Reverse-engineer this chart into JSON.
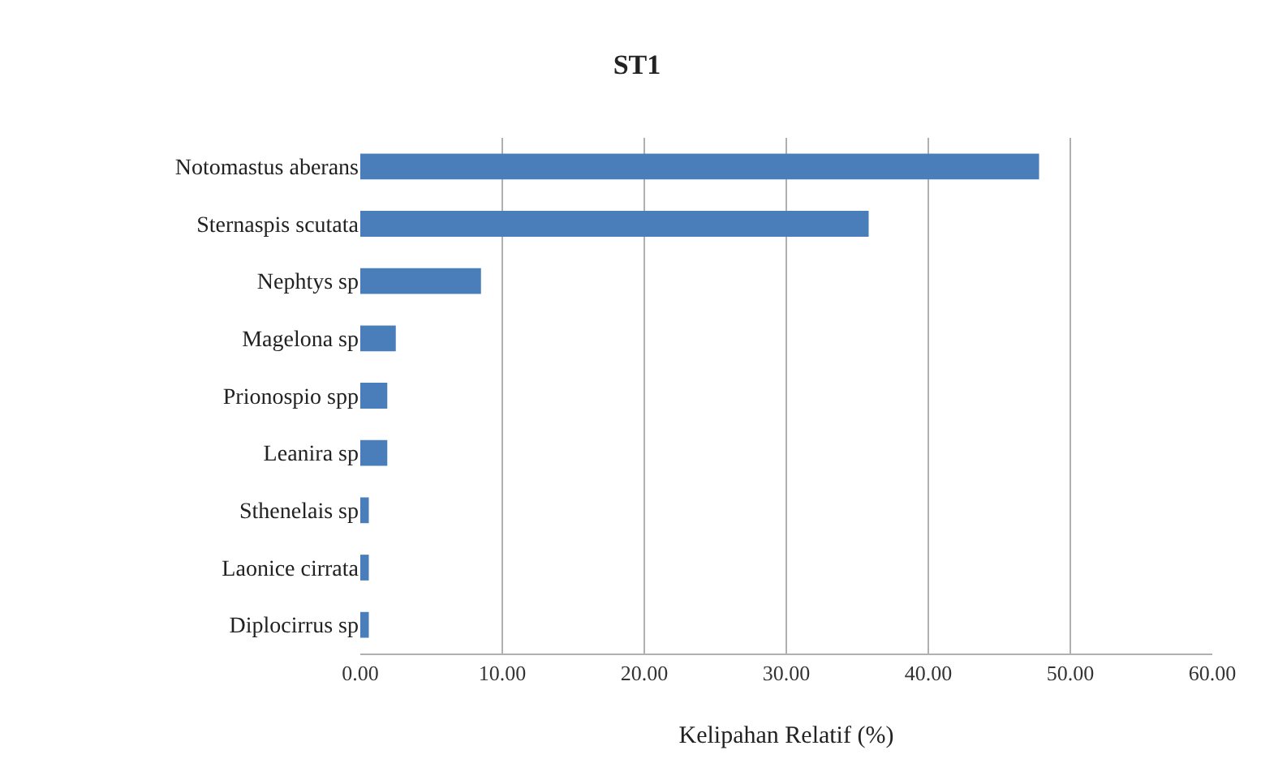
{
  "chart_data": {
    "type": "bar",
    "orientation": "horizontal",
    "title": "ST1",
    "xlabel": "Kelipahan Relatif (%)",
    "categories": [
      "Notomastus aberans",
      "Sternaspis scutata",
      "Nephtys sp",
      "Magelona sp",
      "Prionospio spp",
      "Leanira sp",
      "Sthenelais sp",
      "Laonice cirrata",
      "Diplocirrus sp"
    ],
    "values": [
      47.8,
      35.8,
      8.5,
      2.5,
      1.9,
      1.9,
      0.6,
      0.6,
      0.6
    ],
    "color": "#4a7ebb",
    "xlim": [
      0,
      60
    ],
    "xticks": [
      {
        "value": 0,
        "label": "0.00"
      },
      {
        "value": 10,
        "label": "10.00"
      },
      {
        "value": 20,
        "label": "20.00"
      },
      {
        "value": 30,
        "label": "30.00"
      },
      {
        "value": 40,
        "label": "40.00"
      },
      {
        "value": 50,
        "label": "50.00"
      },
      {
        "value": 60,
        "label": "60.00"
      }
    ],
    "grid": "x"
  }
}
